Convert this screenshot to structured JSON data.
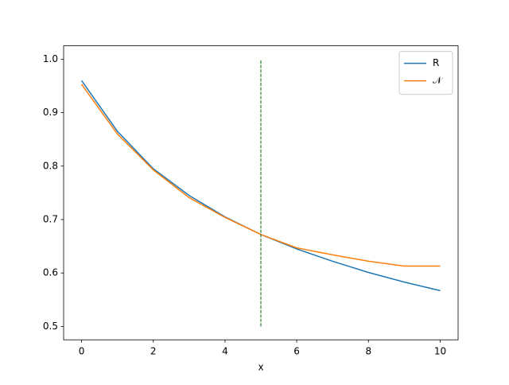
{
  "chart_data": {
    "type": "line",
    "xlabel": "x",
    "x": [
      0,
      1,
      2,
      3,
      4,
      5,
      6,
      7,
      8,
      9,
      10
    ],
    "series": [
      {
        "name": "R",
        "color": "#1f77b4",
        "values": [
          0.96,
          0.865,
          0.795,
          0.745,
          0.705,
          0.672,
          0.645,
          0.622,
          0.601,
          0.583,
          0.567
        ]
      },
      {
        "name": "𝒩",
        "color": "#ff7f0e",
        "values": [
          0.953,
          0.86,
          0.793,
          0.741,
          0.704,
          0.672,
          0.647,
          0.634,
          0.622,
          0.613,
          0.613
        ]
      }
    ],
    "vline": {
      "x": 5,
      "ymin": 0.5,
      "ymax": 1.0,
      "color": "#006400"
    },
    "xlim": [
      -0.5,
      10.5
    ],
    "ylim": [
      0.475,
      1.025
    ],
    "xticks": [
      0,
      2,
      4,
      6,
      8,
      10
    ],
    "yticks": [
      0.5,
      0.6,
      0.7,
      0.8,
      0.9,
      {
        "value": 1,
        "label": "1.0"
      }
    ],
    "legend": "upper right"
  }
}
